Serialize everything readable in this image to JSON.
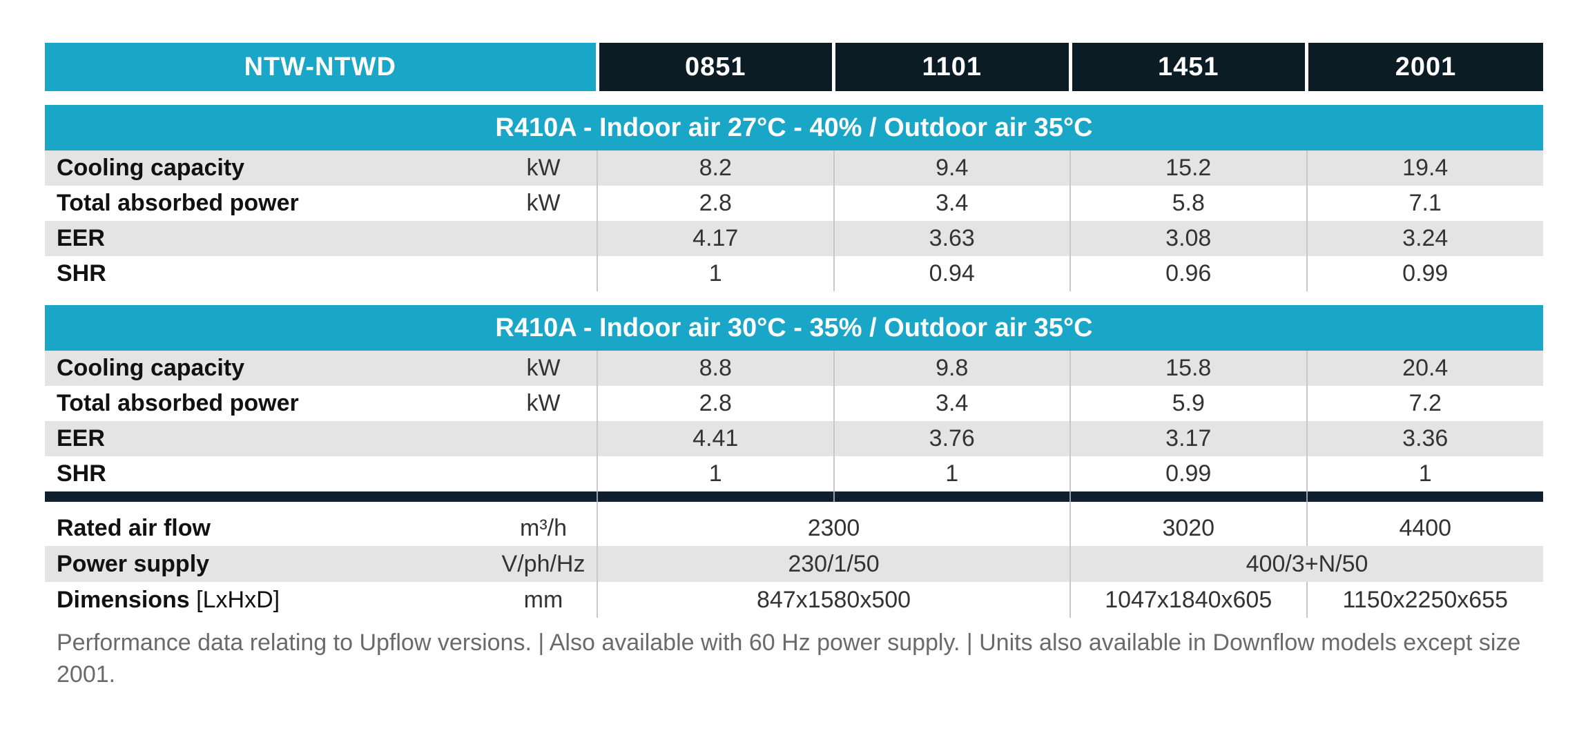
{
  "table": {
    "model_header": "NTW-NTWD",
    "sizes": [
      "0851",
      "1101",
      "1451",
      "2001"
    ],
    "section1": {
      "title": "R410A - Indoor air 27°C -  40% / Outdoor air 35°C",
      "rows": [
        {
          "label": "Cooling capacity",
          "unit": "kW",
          "values": [
            "8.2",
            "9.4",
            "15.2",
            "19.4"
          ]
        },
        {
          "label": "Total absorbed power",
          "unit": "kW",
          "values": [
            "2.8",
            "3.4",
            "5.8",
            "7.1"
          ]
        },
        {
          "label": "EER",
          "unit": "",
          "values": [
            "4.17",
            "3.63",
            "3.08",
            "3.24"
          ]
        },
        {
          "label": "SHR",
          "unit": "",
          "values": [
            "1",
            "0.94",
            "0.96",
            "0.99"
          ]
        }
      ]
    },
    "section2": {
      "title": "R410A - Indoor air 30°C -  35% / Outdoor air 35°C",
      "rows": [
        {
          "label": "Cooling capacity",
          "unit": "kW",
          "values": [
            "8.8",
            "9.8",
            "15.8",
            "20.4"
          ]
        },
        {
          "label": "Total absorbed power",
          "unit": "kW",
          "values": [
            "2.8",
            "3.4",
            "5.9",
            "7.2"
          ]
        },
        {
          "label": "EER",
          "unit": "",
          "values": [
            "4.41",
            "3.76",
            "3.17",
            "3.36"
          ]
        },
        {
          "label": "SHR",
          "unit": "",
          "values": [
            "1",
            "1",
            "0.99",
            "1"
          ]
        }
      ]
    },
    "specs": {
      "air_flow": {
        "label": "Rated air flow",
        "unit": "m³/h",
        "values": [
          "2300",
          "3020",
          "4400"
        ]
      },
      "power_supply": {
        "label": "Power supply",
        "unit": "V/ph/Hz",
        "values": [
          "230/1/50",
          "400/3+N/50"
        ]
      },
      "dimensions": {
        "label": "Dimensions",
        "label_suffix": "[LxHxD]",
        "unit": "mm",
        "values": [
          "847x1580x500",
          "1047x1840x605",
          "1150x2250x655"
        ]
      }
    }
  },
  "footnote": "Performance data relating to Upflow versions. | Also available with 60 Hz power supply. | Units also available in Downflow models except size 2001."
}
